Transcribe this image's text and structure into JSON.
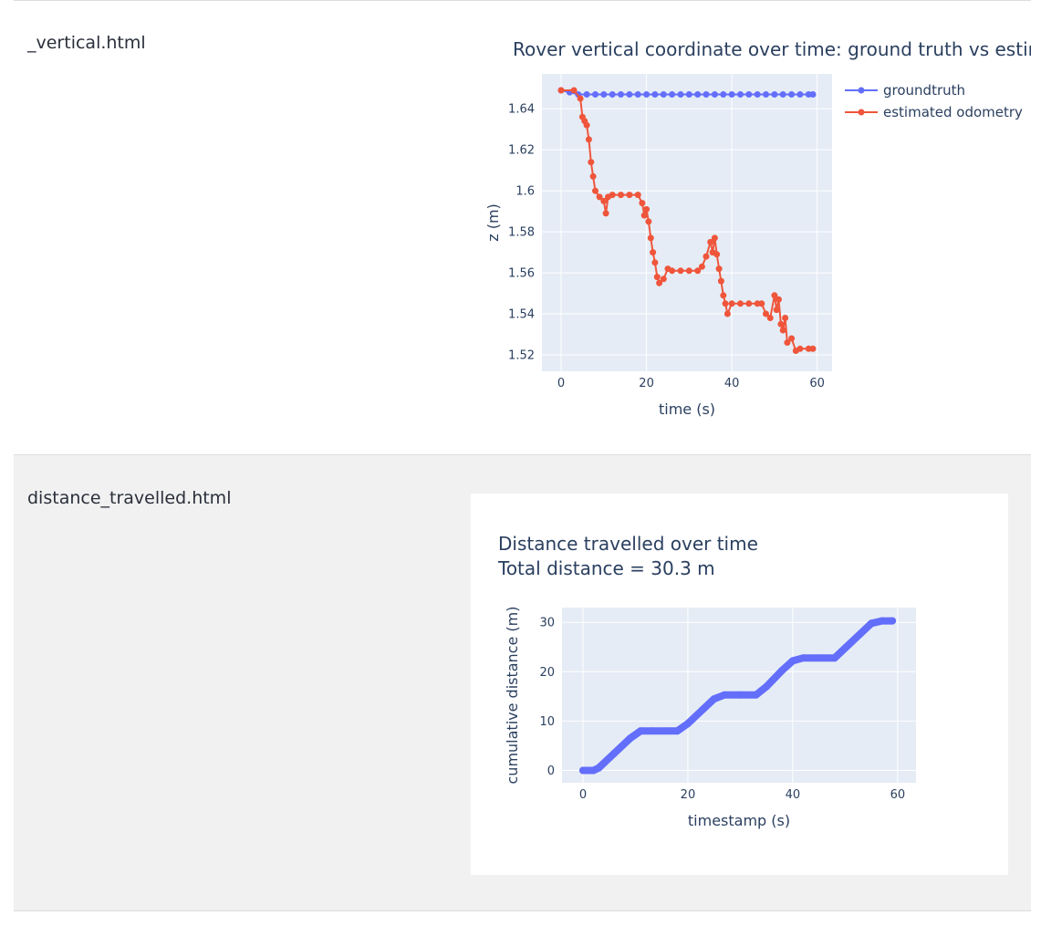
{
  "rows": [
    {
      "file_label": "_vertical.html",
      "chart_title": "Rover vertical coordinate over time: ground truth vs estir"
    },
    {
      "file_label": "distance_travelled.html",
      "chart_title_line1": "Distance travelled over time",
      "chart_title_line2": "Total distance = 30.3 m"
    }
  ],
  "colors": {
    "plot_bg": "#e5ecf6",
    "grid": "#ffffff",
    "text": "#2a3f5f",
    "series_blue": "#636efa",
    "series_red": "#ef553b"
  },
  "chart_data": [
    {
      "type": "scatter",
      "mode": "lines+markers",
      "title": "Rover vertical coordinate over time: ground truth vs estir",
      "xlabel": "time (s)",
      "ylabel": "z (m)",
      "xlim": [
        -4.5,
        63.5
      ],
      "ylim": [
        1.512,
        1.657
      ],
      "x_ticks": [
        0,
        20,
        40,
        60
      ],
      "x_tick_labels": [
        "0",
        "20",
        "40",
        "60"
      ],
      "y_ticks": [
        1.52,
        1.54,
        1.56,
        1.58,
        1.6,
        1.62,
        1.64
      ],
      "y_tick_labels": [
        "1.52",
        "1.54",
        "1.56",
        "1.58",
        "1.6",
        "1.62",
        "1.64"
      ],
      "grid": true,
      "legend_position": "top-right",
      "series": [
        {
          "name": "groundtruth",
          "color": "#636efa",
          "x": [
            0,
            2,
            4,
            6,
            8,
            10,
            12,
            14,
            16,
            18,
            20,
            22,
            24,
            26,
            28,
            30,
            32,
            34,
            36,
            38,
            40,
            42,
            44,
            46,
            48,
            50,
            52,
            54,
            56,
            58,
            59
          ],
          "y": [
            1.649,
            1.648,
            1.647,
            1.647,
            1.647,
            1.647,
            1.647,
            1.647,
            1.647,
            1.647,
            1.647,
            1.647,
            1.647,
            1.647,
            1.647,
            1.647,
            1.647,
            1.647,
            1.647,
            1.647,
            1.647,
            1.647,
            1.647,
            1.647,
            1.647,
            1.647,
            1.647,
            1.647,
            1.647,
            1.647,
            1.647
          ]
        },
        {
          "name": "estimated odometry",
          "color": "#ef553b",
          "x": [
            0,
            3,
            4.5,
            5,
            5.5,
            6,
            6.5,
            7,
            7.5,
            8,
            9,
            10,
            10.5,
            11,
            12,
            14,
            16,
            18,
            19,
            19.5,
            20,
            20.5,
            21,
            21.5,
            22,
            22.5,
            23,
            24,
            25,
            26,
            28,
            30,
            32,
            33,
            34,
            35,
            35.5,
            36,
            36.5,
            37,
            37.5,
            38,
            38.5,
            39,
            40,
            42,
            44,
            46,
            47,
            48,
            49,
            50,
            50.5,
            51,
            51.5,
            52,
            52.5,
            53,
            54,
            55,
            56,
            58,
            59
          ],
          "y": [
            1.649,
            1.649,
            1.645,
            1.636,
            1.634,
            1.632,
            1.625,
            1.614,
            1.607,
            1.6,
            1.597,
            1.595,
            1.589,
            1.597,
            1.598,
            1.598,
            1.598,
            1.598,
            1.594,
            1.588,
            1.591,
            1.585,
            1.577,
            1.57,
            1.565,
            1.558,
            1.555,
            1.557,
            1.562,
            1.561,
            1.561,
            1.561,
            1.561,
            1.563,
            1.568,
            1.575,
            1.57,
            1.577,
            1.569,
            1.562,
            1.556,
            1.549,
            1.545,
            1.54,
            1.545,
            1.545,
            1.545,
            1.545,
            1.545,
            1.54,
            1.538,
            1.549,
            1.542,
            1.547,
            1.535,
            1.532,
            1.538,
            1.526,
            1.528,
            1.522,
            1.523,
            1.523,
            1.523
          ]
        }
      ]
    },
    {
      "type": "scatter",
      "mode": "lines+markers",
      "title": "Distance travelled over time",
      "subtitle": "Total distance = 30.3 m",
      "xlabel": "timestamp (s)",
      "ylabel": "cumulative distance (m)",
      "xlim": [
        -4,
        63.5
      ],
      "ylim": [
        -2.5,
        33
      ],
      "x_ticks": [
        0,
        20,
        40,
        60
      ],
      "x_tick_labels": [
        "0",
        "20",
        "40",
        "60"
      ],
      "y_ticks": [
        0,
        10,
        20,
        30
      ],
      "y_tick_labels": [
        "0",
        "10",
        "20",
        "30"
      ],
      "grid": true,
      "series": [
        {
          "name": "",
          "color": "#636efa",
          "x": [
            0,
            2,
            3,
            6,
            9,
            11,
            13,
            16,
            18,
            20,
            23,
            25,
            27,
            30,
            33,
            35,
            38,
            40,
            42,
            45,
            48,
            50,
            53,
            55,
            57,
            59
          ],
          "y": [
            0,
            0,
            0.5,
            3.5,
            6.5,
            8,
            8,
            8,
            8,
            9.5,
            12.5,
            14.5,
            15.3,
            15.3,
            15.3,
            17,
            20.3,
            22.2,
            22.8,
            22.8,
            22.8,
            24.8,
            27.8,
            29.8,
            30.3,
            30.3
          ]
        }
      ]
    }
  ]
}
